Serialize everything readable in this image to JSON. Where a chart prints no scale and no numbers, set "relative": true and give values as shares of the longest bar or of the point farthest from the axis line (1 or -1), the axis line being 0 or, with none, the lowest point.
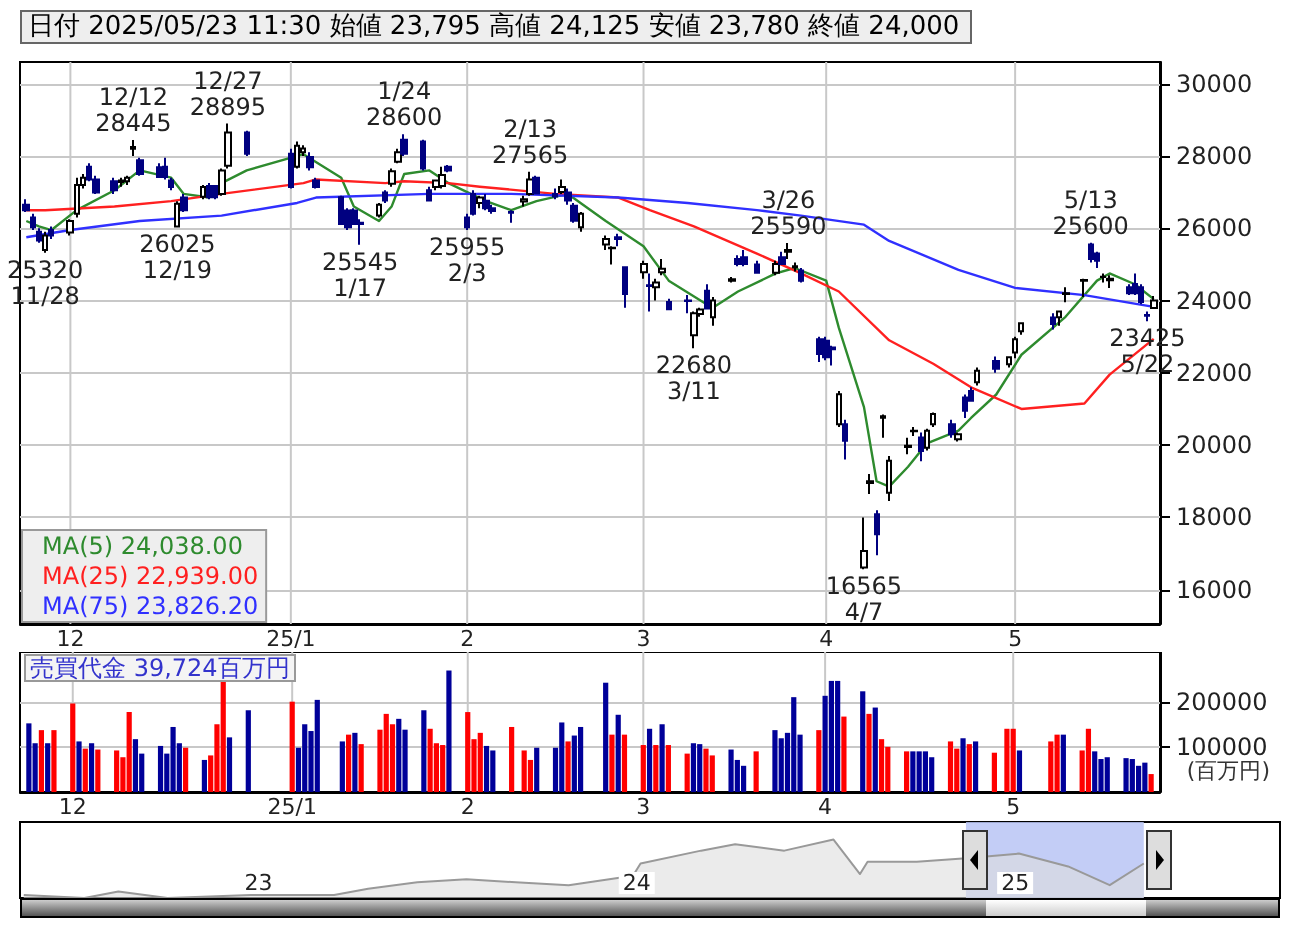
{
  "chart_data": [
    {
      "type": "candlestick",
      "title": "日付 2025/05/23 11:30 始値 23,795 高値 24,125 安値 23,780 終値 24,000",
      "x": [
        "2024-11-25",
        "2024-11-26",
        "2024-11-27",
        "2024-11-28",
        "2024-11-29",
        "2024-12-02",
        "2024-12-03",
        "2024-12-04",
        "2024-12-05",
        "2024-12-06",
        "2024-12-09",
        "2024-12-10",
        "2024-12-11",
        "2024-12-12",
        "2024-12-13",
        "2024-12-16",
        "2024-12-17",
        "2024-12-18",
        "2024-12-19",
        "2024-12-20",
        "2024-12-23",
        "2024-12-24",
        "2024-12-25",
        "2024-12-26",
        "2024-12-27",
        "2024-12-30",
        "2025-01-06",
        "2025-01-07",
        "2025-01-08",
        "2025-01-09",
        "2025-01-10",
        "2025-01-14",
        "2025-01-15",
        "2025-01-16",
        "2025-01-17",
        "2025-01-20",
        "2025-01-21",
        "2025-01-22",
        "2025-01-23",
        "2025-01-24",
        "2025-01-27",
        "2025-01-28",
        "2025-01-29",
        "2025-01-30",
        "2025-01-31",
        "2025-02-03",
        "2025-02-04",
        "2025-02-05",
        "2025-02-06",
        "2025-02-07",
        "2025-02-10",
        "2025-02-12",
        "2025-02-13",
        "2025-02-14",
        "2025-02-17",
        "2025-02-18",
        "2025-02-19",
        "2025-02-20",
        "2025-02-21",
        "2025-02-25",
        "2025-02-26",
        "2025-02-27",
        "2025-02-28",
        "2025-03-03",
        "2025-03-04",
        "2025-03-05",
        "2025-03-06",
        "2025-03-07",
        "2025-03-10",
        "2025-03-11",
        "2025-03-12",
        "2025-03-13",
        "2025-03-14",
        "2025-03-17",
        "2025-03-18",
        "2025-03-19",
        "2025-03-21",
        "2025-03-24",
        "2025-03-25",
        "2025-03-26",
        "2025-03-27",
        "2025-03-28",
        "2025-03-31",
        "2025-04-01",
        "2025-04-02",
        "2025-04-03",
        "2025-04-04",
        "2025-04-07",
        "2025-04-08",
        "2025-04-09",
        "2025-04-10",
        "2025-04-11",
        "2025-04-14",
        "2025-04-15",
        "2025-04-16",
        "2025-04-17",
        "2025-04-18",
        "2025-04-21",
        "2025-04-22",
        "2025-04-23",
        "2025-04-24",
        "2025-04-25",
        "2025-04-28",
        "2025-04-30",
        "2025-05-01",
        "2025-05-02",
        "2025-05-07",
        "2025-05-08",
        "2025-05-09",
        "2025-05-12",
        "2025-05-13",
        "2025-05-14",
        "2025-05-15",
        "2025-05-16",
        "2025-05-19",
        "2025-05-20",
        "2025-05-21",
        "2025-05-22",
        "2025-05-23"
      ],
      "xlim": [
        "2024-11-24",
        "2025-05-24"
      ],
      "xticks": [
        {
          "value": "2024-12-02",
          "label": "12"
        },
        {
          "value": "2025-01-06",
          "label": "25/1"
        },
        {
          "value": "2025-02-03",
          "label": "2"
        },
        {
          "value": "2025-03-03",
          "label": "3"
        },
        {
          "value": "2025-04-01",
          "label": "4"
        },
        {
          "value": "2025-05-01",
          "label": "5"
        }
      ],
      "ylim": [
        15050,
        30600
      ],
      "yticks": [
        16000,
        18000,
        20000,
        22000,
        24000,
        26000,
        28000,
        30000
      ],
      "grid": true,
      "legend": "bottom left",
      "series": [
        {
          "type": "candlestick",
          "colors": [
            "#000080",
            "#000080",
            "#000080",
            "#ffffff",
            "#000080",
            "#ffffff",
            "#ffffff",
            "#ffffff",
            "#000080",
            "#000080",
            "#000080",
            "#ffffff",
            "#ffffff",
            "#ffffff",
            "#000080",
            "#000080",
            "#000080",
            "#000080",
            "#ffffff",
            "#000080",
            "#ffffff",
            "#000080",
            "#000080",
            "#ffffff",
            "#ffffff",
            "#000080",
            "#000080",
            "#ffffff",
            "#ffffff",
            "#000080",
            "#000080",
            "#000080",
            "#000080",
            "#000080",
            "#000080",
            "#ffffff",
            "#000080",
            "#ffffff",
            "#ffffff",
            "#000080",
            "#000080",
            "#000080",
            "#ffffff",
            "#ffffff",
            "#000080",
            "#000080",
            "#000080",
            "#ffffff",
            "#000080",
            "#000080",
            "#000080",
            "#ffffff",
            "#ffffff",
            "#000080",
            "#000080",
            "#ffffff",
            "#000080",
            "#000080",
            "#ffffff",
            "#ffffff",
            "#ffffff",
            "#000080",
            "#000080",
            "#ffffff",
            "#000080",
            "#ffffff",
            "#ffffff",
            "#000080",
            "#000080",
            "#ffffff",
            "#ffffff",
            "#000080",
            "#ffffff",
            "#ffffff",
            "#000080",
            "#000080",
            "#000080",
            "#ffffff",
            "#000080",
            "#ffffff",
            "#ffffff",
            "#000080",
            "#000080",
            "#000080",
            "#000080",
            "#ffffff",
            "#000080",
            "#ffffff",
            "#ffffff",
            "#000080",
            "#ffffff",
            "#ffffff",
            "#ffffff",
            "#ffffff",
            "#000080",
            "#ffffff",
            "#ffffff",
            "#000080",
            "#ffffff",
            "#000080",
            "#000080",
            "#ffffff",
            "#000080",
            "#ffffff",
            "#ffffff",
            "#ffffff",
            "#000080",
            "#ffffff",
            "#ffffff",
            "#ffffff",
            "#000080",
            "#000080",
            "#ffffff",
            "#ffffff",
            "#000080",
            "#000080",
            "#000080",
            "#000080",
            "#ffffff"
          ],
          "ohlc": [
            [
              26650,
              26800,
              26450,
              26500
            ],
            [
              26300,
              26400,
              25950,
              26030
            ],
            [
              25900,
              26000,
              25600,
              25660
            ],
            [
              25400,
              25900,
              25320,
              25800
            ],
            [
              25950,
              26050,
              25700,
              25800
            ],
            [
              25880,
              26250,
              25800,
              26200
            ],
            [
              26400,
              27400,
              26300,
              27200
            ],
            [
              27200,
              27500,
              27100,
              27400
            ],
            [
              27700,
              27800,
              27300,
              27350
            ],
            [
              27350,
              27450,
              26950,
              26990
            ],
            [
              27300,
              27400,
              26950,
              27050
            ],
            [
              27280,
              27400,
              27150,
              27320
            ],
            [
              27300,
              27450,
              27200,
              27400
            ],
            [
              28200,
              28445,
              28000,
              28250
            ],
            [
              27880,
              27950,
              27450,
              27500
            ],
            [
              27690,
              27800,
              27400,
              27420
            ],
            [
              27700,
              27950,
              27350,
              27420
            ],
            [
              27320,
              27400,
              27050,
              27140
            ],
            [
              26050,
              26750,
              26025,
              26680
            ],
            [
              26850,
              26950,
              26450,
              26500
            ],
            [
              26870,
              27200,
              26800,
              27140
            ],
            [
              27170,
              27250,
              26800,
              26860
            ],
            [
              27170,
              27200,
              26800,
              26860
            ],
            [
              26950,
              27650,
              26900,
              27600
            ],
            [
              27730,
              28895,
              27650,
              28650
            ],
            [
              28650,
              28700,
              28000,
              28060
            ],
            [
              28060,
              28200,
              27100,
              27140
            ],
            [
              27700,
              28400,
              27650,
              28280
            ],
            [
              28100,
              28300,
              28000,
              28210
            ],
            [
              27970,
              28100,
              27600,
              27690
            ],
            [
              27320,
              27400,
              27100,
              27140
            ],
            [
              26860,
              26900,
              26100,
              26120
            ],
            [
              26490,
              26550,
              25950,
              26030
            ],
            [
              26490,
              26550,
              26100,
              26120
            ],
            [
              26150,
              26250,
              25545,
              26120
            ],
            [
              26350,
              26700,
              26300,
              26650
            ],
            [
              26990,
              27050,
              26700,
              26770
            ],
            [
              27230,
              27650,
              27150,
              27580
            ],
            [
              27840,
              28200,
              27800,
              28100
            ],
            [
              28450,
              28600,
              28000,
              28060
            ],
            [
              28400,
              28450,
              27600,
              27650
            ],
            [
              27050,
              27150,
              26750,
              26770
            ],
            [
              27140,
              27350,
              27050,
              27320
            ],
            [
              27170,
              27700,
              27100,
              27470
            ],
            [
              27700,
              27750,
              27550,
              27600
            ],
            [
              26300,
              26400,
              25955,
              26030
            ],
            [
              26950,
              27050,
              26350,
              26400
            ],
            [
              26700,
              26900,
              26550,
              26850
            ],
            [
              26760,
              26950,
              26500,
              26550
            ],
            [
              26550,
              26650,
              26400,
              26480
            ],
            [
              26450,
              26500,
              26150,
              26430
            ],
            [
              26740,
              26900,
              26600,
              26800
            ],
            [
              26950,
              27565,
              26900,
              27350
            ],
            [
              27400,
              27450,
              26950,
              26960
            ],
            [
              26950,
              27100,
              26800,
              26880
            ],
            [
              27000,
              27350,
              26950,
              27140
            ],
            [
              26990,
              27100,
              26650,
              26770
            ],
            [
              26620,
              26700,
              26150,
              26210
            ],
            [
              26030,
              26450,
              25900,
              26400
            ],
            [
              25550,
              25800,
              25400,
              25700
            ],
            [
              25450,
              25500,
              25000,
              25460
            ],
            [
              25750,
              25850,
              25500,
              25700
            ],
            [
              24920,
              24950,
              23800,
              24180
            ],
            [
              24780,
              25100,
              24600,
              25010
            ],
            [
              24420,
              24750,
              23700,
              24400
            ],
            [
              24370,
              24600,
              24000,
              24500
            ],
            [
              24780,
              25150,
              24700,
              24880
            ],
            [
              23960,
              24050,
              23750,
              23760
            ],
            [
              24000,
              24150,
              23650,
              23990
            ],
            [
              23040,
              23700,
              22680,
              23650
            ],
            [
              23630,
              23800,
              23550,
              23750
            ],
            [
              24270,
              24450,
              23750,
              23780
            ],
            [
              23540,
              24100,
              23300,
              24000
            ],
            [
              24550,
              24650,
              24500,
              24590
            ],
            [
              25150,
              25250,
              24950,
              25010
            ],
            [
              25200,
              25400,
              24950,
              25010
            ],
            [
              25000,
              25100,
              24750,
              24770
            ],
            [
              24770,
              25100,
              24700,
              25010
            ],
            [
              25200,
              25350,
              25000,
              25010
            ],
            [
              25350,
              25590,
              25150,
              25400
            ],
            [
              24920,
              25050,
              24800,
              24950
            ],
            [
              24830,
              24900,
              24500,
              24550
            ],
            [
              22930,
              23000,
              22300,
              22520
            ],
            [
              22890,
              23000,
              22350,
              22430
            ],
            [
              22700,
              22750,
              22200,
              22650
            ],
            [
              20580,
              21500,
              20500,
              21410
            ],
            [
              20580,
              20700,
              19600,
              20120
            ],
            [
              16610,
              18000,
              16565,
              17070
            ],
            [
              18950,
              19200,
              18650,
              19000
            ],
            [
              18090,
              18200,
              16950,
              17530
            ],
            [
              20760,
              20850,
              20200,
              20800
            ],
            [
              18680,
              19700,
              18450,
              19570
            ],
            [
              19950,
              20200,
              19750,
              19980
            ],
            [
              20380,
              20500,
              20250,
              20400
            ],
            [
              20210,
              20350,
              19550,
              19840
            ],
            [
              19930,
              20450,
              19850,
              20400
            ],
            [
              20580,
              20900,
              20500,
              20860
            ],
            [
              20580,
              20700,
              20200,
              20300
            ],
            [
              20160,
              20350,
              20100,
              20300
            ],
            [
              21320,
              21400,
              20750,
              20950
            ],
            [
              21500,
              21600,
              21200,
              21230
            ],
            [
              21740,
              22150,
              21650,
              22060
            ],
            [
              22330,
              22450,
              22000,
              22110
            ],
            [
              22240,
              22450,
              22150,
              22430
            ],
            [
              22560,
              23000,
              22400,
              22930
            ],
            [
              23150,
              23400,
              23050,
              23370
            ],
            [
              23530,
              23650,
              23200,
              23350
            ],
            [
              23540,
              23700,
              23300,
              23700
            ],
            [
              24180,
              24370,
              23950,
              24200
            ],
            [
              24550,
              24600,
              24100,
              24570
            ],
            [
              25550,
              25600,
              25050,
              25150
            ],
            [
              25300,
              25350,
              24900,
              25100
            ],
            [
              24650,
              24750,
              24500,
              24660
            ],
            [
              24560,
              24700,
              24350,
              24600
            ],
            [
              24370,
              24450,
              24150,
              24200
            ],
            [
              24460,
              24750,
              24150,
              24200
            ],
            [
              24370,
              24450,
              23900,
              23960
            ],
            [
              23600,
              23700,
              23425,
              23580
            ],
            [
              23795,
              24125,
              23780,
              24000
            ]
          ]
        },
        {
          "type": "line",
          "name": "MA(5) 24,038.00",
          "color": "#2e8b2e",
          "x": [
            "2024-11-25",
            "2024-11-27",
            "2024-11-29",
            "2024-12-03",
            "2024-12-09",
            "2024-12-13",
            "2024-12-18",
            "2024-12-20",
            "2024-12-24",
            "2024-12-26",
            "2024-12-30",
            "2025-01-08",
            "2025-01-14",
            "2025-01-16",
            "2025-01-20",
            "2025-01-22",
            "2025-01-24",
            "2025-01-28",
            "2025-01-31",
            "2025-02-06",
            "2025-02-10",
            "2025-02-14",
            "2025-02-19",
            "2025-02-25",
            "2025-03-03",
            "2025-03-07",
            "2025-03-13",
            "2025-03-14",
            "2025-03-18",
            "2025-03-24",
            "2025-03-27",
            "2025-04-01",
            "2025-04-03",
            "2025-04-07",
            "2025-04-09",
            "2025-04-11",
            "2025-04-14",
            "2025-04-17",
            "2025-04-22",
            "2025-04-24",
            "2025-04-28",
            "2025-05-02",
            "2025-05-09",
            "2025-05-14",
            "2025-05-16",
            "2025-05-20",
            "2025-05-23"
          ],
          "values": [
            26200,
            26050,
            25950,
            26500,
            27050,
            27600,
            27400,
            26950,
            26850,
            27250,
            27600,
            28050,
            27400,
            26600,
            26200,
            26600,
            27500,
            27600,
            27250,
            26750,
            26500,
            26750,
            26950,
            26200,
            25500,
            24550,
            23900,
            23800,
            24250,
            24750,
            24900,
            24550,
            23250,
            21050,
            19000,
            18850,
            19400,
            20050,
            20400,
            20750,
            21400,
            22500,
            23550,
            24550,
            24750,
            24450,
            24038
          ]
        },
        {
          "type": "line",
          "name": "MA(25) 22,939.00",
          "color": "#ff2020",
          "x": [
            "2024-11-25",
            "2024-11-28",
            "2024-12-09",
            "2024-12-18",
            "2024-12-26",
            "2025-01-08",
            "2025-01-10",
            "2025-01-21",
            "2025-01-24",
            "2025-01-31",
            "2025-02-05",
            "2025-02-17",
            "2025-02-27",
            "2025-03-04",
            "2025-03-11",
            "2025-03-21",
            "2025-03-28",
            "2025-04-03",
            "2025-04-11",
            "2025-04-18",
            "2025-04-24",
            "2025-05-02",
            "2025-05-12",
            "2025-05-16",
            "2025-05-23"
          ],
          "values": [
            26500,
            26500,
            26600,
            26750,
            26950,
            27250,
            27350,
            27250,
            27300,
            27250,
            27150,
            26950,
            26850,
            26500,
            26050,
            25300,
            24750,
            24250,
            22900,
            22250,
            21600,
            21000,
            21150,
            21950,
            22939
          ]
        },
        {
          "type": "line",
          "name": "MA(75) 23,826.20",
          "color": "#3030ff",
          "x": [
            "2024-11-25",
            "2024-12-02",
            "2024-12-13",
            "2024-12-26",
            "2025-01-07",
            "2025-01-10",
            "2025-01-28",
            "2025-02-10",
            "2025-02-27",
            "2025-03-10",
            "2025-03-21",
            "2025-03-28",
            "2025-04-07",
            "2025-04-11",
            "2025-04-22",
            "2025-05-01",
            "2025-05-12",
            "2025-05-23"
          ],
          "values": [
            25750,
            25950,
            26200,
            26350,
            26700,
            26850,
            26950,
            26950,
            26850,
            26700,
            26500,
            26350,
            26100,
            25650,
            24850,
            24350,
            24150,
            23826
          ]
        }
      ],
      "annotations": [
        {
          "text": "12/12\n28445",
          "x": "2024-12-12",
          "y": 28445
        },
        {
          "text": "12/27\n28895",
          "x": "2024-12-27",
          "y": 28895
        },
        {
          "text": "1/24\n28600",
          "x": "2025-01-24",
          "y": 28600
        },
        {
          "text": "2/13\n27565",
          "x": "2025-02-13",
          "y": 27565
        },
        {
          "text": "3/26\n25590",
          "x": "2025-03-26",
          "y": 25590
        },
        {
          "text": "5/13\n25600",
          "x": "2025-05-13",
          "y": 25600
        },
        {
          "text": "25320\n11/28",
          "x": "2024-11-28",
          "y": 25320
        },
        {
          "text": "26025\n12/19",
          "x": "2024-12-19",
          "y": 26025
        },
        {
          "text": "25545\n1/17",
          "x": "2025-01-17",
          "y": 25545
        },
        {
          "text": "25955\n2/3",
          "x": "2025-02-03",
          "y": 25955
        },
        {
          "text": "22680\n3/11",
          "x": "2025-03-11",
          "y": 22680
        },
        {
          "text": "16565\n4/7",
          "x": "2025-04-07",
          "y": 16565
        },
        {
          "text": "23425\n5/22",
          "x": "2025-05-22",
          "y": 23425
        }
      ]
    },
    {
      "type": "bar",
      "title": "売買代金 39,724百万円",
      "ylabel": "(百万円)",
      "x": [
        "2024-11-25",
        "2024-11-26",
        "2024-11-27",
        "2024-11-28",
        "2024-11-29",
        "2024-12-02",
        "2024-12-03",
        "2024-12-04",
        "2024-12-05",
        "2024-12-06",
        "2024-12-09",
        "2024-12-10",
        "2024-12-11",
        "2024-12-12",
        "2024-12-13",
        "2024-12-16",
        "2024-12-17",
        "2024-12-18",
        "2024-12-19",
        "2024-12-20",
        "2024-12-23",
        "2024-12-24",
        "2024-12-25",
        "2024-12-26",
        "2024-12-27",
        "2024-12-30",
        "2025-01-06",
        "2025-01-07",
        "2025-01-08",
        "2025-01-09",
        "2025-01-10",
        "2025-01-14",
        "2025-01-15",
        "2025-01-16",
        "2025-01-17",
        "2025-01-20",
        "2025-01-21",
        "2025-01-22",
        "2025-01-23",
        "2025-01-24",
        "2025-01-27",
        "2025-01-28",
        "2025-01-29",
        "2025-01-30",
        "2025-01-31",
        "2025-02-03",
        "2025-02-04",
        "2025-02-05",
        "2025-02-06",
        "2025-02-07",
        "2025-02-10",
        "2025-02-12",
        "2025-02-13",
        "2025-02-14",
        "2025-02-17",
        "2025-02-18",
        "2025-02-19",
        "2025-02-20",
        "2025-02-21",
        "2025-02-25",
        "2025-02-26",
        "2025-02-27",
        "2025-02-28",
        "2025-03-03",
        "2025-03-04",
        "2025-03-05",
        "2025-03-06",
        "2025-03-07",
        "2025-03-10",
        "2025-03-11",
        "2025-03-12",
        "2025-03-13",
        "2025-03-14",
        "2025-03-17",
        "2025-03-18",
        "2025-03-19",
        "2025-03-21",
        "2025-03-24",
        "2025-03-25",
        "2025-03-26",
        "2025-03-27",
        "2025-03-28",
        "2025-03-31",
        "2025-04-01",
        "2025-04-02",
        "2025-04-03",
        "2025-04-04",
        "2025-04-07",
        "2025-04-08",
        "2025-04-09",
        "2025-04-10",
        "2025-04-11",
        "2025-04-14",
        "2025-04-15",
        "2025-04-16",
        "2025-04-17",
        "2025-04-18",
        "2025-04-21",
        "2025-04-22",
        "2025-04-23",
        "2025-04-24",
        "2025-04-25",
        "2025-04-28",
        "2025-04-30",
        "2025-05-01",
        "2025-05-02",
        "2025-05-07",
        "2025-05-08",
        "2025-05-09",
        "2025-05-12",
        "2025-05-13",
        "2025-05-14",
        "2025-05-15",
        "2025-05-16",
        "2025-05-19",
        "2025-05-20",
        "2025-05-21",
        "2025-05-22",
        "2025-05-23"
      ],
      "xlim": [
        "2024-11-24",
        "2025-05-24"
      ],
      "xticks": [
        {
          "value": "2024-12-02",
          "label": "12"
        },
        {
          "value": "2025-01-06",
          "label": "25/1"
        },
        {
          "value": "2025-02-03",
          "label": "2"
        },
        {
          "value": "2025-03-03",
          "label": "3"
        },
        {
          "value": "2025-04-01",
          "label": "4"
        },
        {
          "value": "2025-05-01",
          "label": "5"
        }
      ],
      "ylim": [
        0,
        310000
      ],
      "yticks": [
        100000,
        200000
      ],
      "grid": true,
      "values": [
        152000,
        108000,
        137000,
        108000,
        137000,
        196000,
        112000,
        96000,
        108000,
        94000,
        92000,
        77000,
        177000,
        117000,
        85000,
        102000,
        85000,
        144000,
        108000,
        98000,
        71000,
        81000,
        150000,
        246000,
        121000,
        181000,
        200000,
        98000,
        150000,
        135000,
        204000,
        112000,
        127000,
        131000,
        106000,
        138000,
        173000,
        150000,
        162000,
        138000,
        181000,
        140000,
        108000,
        104000,
        269000,
        177000,
        117000,
        131000,
        102000,
        92000,
        144000,
        92000,
        71000,
        98000,
        98000,
        154000,
        112000,
        125000,
        144000,
        242000,
        127000,
        171000,
        127000,
        104000,
        140000,
        104000,
        150000,
        104000,
        85000,
        108000,
        106000,
        96000,
        81000,
        94000,
        71000,
        58000,
        90000,
        137000,
        119000,
        131000,
        210000,
        127000,
        137000,
        213000,
        246000,
        246000,
        167000,
        223000,
        173000,
        187000,
        117000,
        100000,
        90000,
        90000,
        90000,
        90000,
        77000,
        112000,
        96000,
        119000,
        106000,
        112000,
        87000,
        140000,
        140000,
        92000,
        112000,
        127000,
        127000,
        92000,
        140000,
        90000,
        73000,
        77000,
        75000,
        73000,
        58000,
        65000,
        39724
      ],
      "colors": [
        "#000099",
        "#000099",
        "#ff0000",
        "#000099",
        "#ff0000",
        "#ff0000",
        "#000099",
        "#ff0000",
        "#000099",
        "#ff0000",
        "#ff0000",
        "#ff0000",
        "#ff0000",
        "#000099",
        "#000099",
        "#000099",
        "#000099",
        "#000099",
        "#000099",
        "#ff0000",
        "#000099",
        "#ff0000",
        "#ff0000",
        "#ff0000",
        "#000099",
        "#000099",
        "#ff0000",
        "#000099",
        "#000099",
        "#000099",
        "#000099",
        "#000099",
        "#ff0000",
        "#000099",
        "#ff0000",
        "#ff0000",
        "#ff0000",
        "#ff0000",
        "#000099",
        "#000099",
        "#000099",
        "#ff0000",
        "#ff0000",
        "#ff0000",
        "#000099",
        "#ff0000",
        "#ff0000",
        "#ff0000",
        "#000099",
        "#000099",
        "#ff0000",
        "#ff0000",
        "#ff0000",
        "#000099",
        "#000099",
        "#000099",
        "#ff0000",
        "#000099",
        "#000099",
        "#000099",
        "#ff0000",
        "#000099",
        "#ff0000",
        "#ff0000",
        "#000099",
        "#ff0000",
        "#000099",
        "#ff0000",
        "#ff0000",
        "#000099",
        "#000099",
        "#ff0000",
        "#ff0000",
        "#000099",
        "#000099",
        "#000099",
        "#ff0000",
        "#000099",
        "#000099",
        "#000099",
        "#000099",
        "#000099",
        "#ff0000",
        "#000099",
        "#000099",
        "#000099",
        "#ff0000",
        "#000099",
        "#ff0000",
        "#000099",
        "#ff0000",
        "#ff0000",
        "#ff0000",
        "#000099",
        "#000099",
        "#000099",
        "#000099",
        "#ff0000",
        "#ff0000",
        "#000099",
        "#ff0000",
        "#000099",
        "#ff0000",
        "#ff0000",
        "#ff0000",
        "#000099",
        "#ff0000",
        "#ff0000",
        "#000099",
        "#ff0000",
        "#ff0000",
        "#000099",
        "#000099",
        "#000099",
        "#000099",
        "#000099",
        "#000099",
        "#000099",
        "#ff0000"
      ]
    },
    {
      "type": "area",
      "relative": true,
      "color": "#999999",
      "xlim": [
        2022.37,
        2025.7
      ],
      "xticks": [
        {
          "value": 2023,
          "label": "23"
        },
        {
          "value": 2024,
          "label": "24"
        },
        {
          "value": 2025,
          "label": "25"
        }
      ],
      "x": [
        2022.38,
        2022.54,
        2022.63,
        2022.76,
        2022.98,
        2023.2,
        2023.29,
        2023.42,
        2023.55,
        2023.68,
        2023.82,
        2023.99,
        2024.01,
        2024.17,
        2024.26,
        2024.39,
        2024.52,
        2024.59,
        2024.61,
        2024.74,
        2024.87,
        2025.01,
        2025.14,
        2025.25,
        2025.34
      ],
      "values": [
        0.05,
        0,
        0.11,
        0,
        0.05,
        0.05,
        0.16,
        0.27,
        0.32,
        0.27,
        0.22,
        0.38,
        0.59,
        0.81,
        0.92,
        0.81,
        1,
        0.41,
        0.62,
        0.62,
        0.68,
        0.76,
        0.54,
        0.22,
        0.59
      ],
      "bands": [
        {
          "axis": "x",
          "from": 2024.87,
          "to": 2025.34,
          "color": "#b8c4f4"
        }
      ]
    }
  ]
}
